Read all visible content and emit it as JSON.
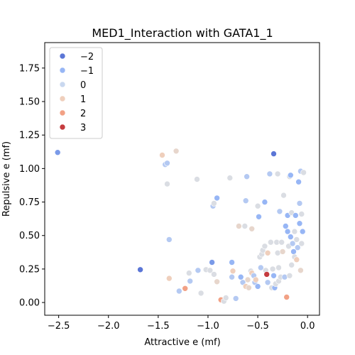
{
  "chart_data": {
    "type": "scatter",
    "title": "MED1_Interaction with GATA1_1",
    "xlabel": "Attractive e (mf)",
    "ylabel": "Repulsive e (mf)",
    "xlim": [
      -2.64,
      0.12
    ],
    "ylim": [
      -0.095,
      1.94
    ],
    "xticks": [
      -2.5,
      -2.0,
      -1.5,
      -1.0,
      -0.5,
      0.0
    ],
    "xtick_labels": [
      "−2.5",
      "−2.0",
      "−1.5",
      "−1.0",
      "−0.5",
      "0.0"
    ],
    "yticks": [
      0.0,
      0.25,
      0.5,
      0.75,
      1.0,
      1.25,
      1.5,
      1.75
    ],
    "ytick_labels": [
      "0.00",
      "0.25",
      "0.50",
      "0.75",
      "1.00",
      "1.25",
      "1.50",
      "1.75"
    ],
    "grid": false,
    "legend": {
      "placement": "top-left",
      "entries": [
        {
          "label": "−2",
          "value": -2,
          "color": "#5b76d6"
        },
        {
          "label": "−1",
          "value": -1,
          "color": "#97b6f5"
        },
        {
          "label": "0",
          "value": 0,
          "color": "#c9d8ef"
        },
        {
          "label": "1",
          "value": 1,
          "color": "#efcfbc"
        },
        {
          "label": "2",
          "value": 2,
          "color": "#f2a185"
        },
        {
          "label": "3",
          "value": 3,
          "color": "#c53b3e"
        }
      ]
    },
    "hue_colors": {
      "-2": "#5b76d6",
      "-1.5": "#7a9ae8",
      "-1": "#97b6f5",
      "-0.5": "#b4c9f2",
      "0": "#dadde3",
      "0.5": "#e7d6cc",
      "1": "#efcfbc",
      "2": "#f2a185",
      "3": "#c53b3e"
    },
    "points": [
      {
        "x": -2.51,
        "y": 1.12,
        "hue": -1.5
      },
      {
        "x": -1.68,
        "y": 0.245,
        "hue": -2
      },
      {
        "x": -1.46,
        "y": 1.1,
        "hue": 1
      },
      {
        "x": -1.43,
        "y": 1.03,
        "hue": -0.5
      },
      {
        "x": -1.41,
        "y": 1.04,
        "hue": -0.5
      },
      {
        "x": -1.32,
        "y": 1.13,
        "hue": 0.5
      },
      {
        "x": -1.41,
        "y": 0.885,
        "hue": 0
      },
      {
        "x": -1.39,
        "y": 0.47,
        "hue": -0.5
      },
      {
        "x": -1.39,
        "y": 0.18,
        "hue": 1
      },
      {
        "x": -1.29,
        "y": 0.085,
        "hue": -0.5
      },
      {
        "x": -1.23,
        "y": 0.105,
        "hue": 2
      },
      {
        "x": -1.19,
        "y": 0.22,
        "hue": 0
      },
      {
        "x": -1.18,
        "y": 0.16,
        "hue": -0.5
      },
      {
        "x": -1.11,
        "y": 0.92,
        "hue": 0
      },
      {
        "x": -1.1,
        "y": 0.24,
        "hue": -0.5
      },
      {
        "x": -1.07,
        "y": 0.07,
        "hue": 0
      },
      {
        "x": -1.02,
        "y": 0.245,
        "hue": 0
      },
      {
        "x": -0.98,
        "y": 0.24,
        "hue": 0
      },
      {
        "x": -0.96,
        "y": 0.3,
        "hue": -1.5
      },
      {
        "x": -0.95,
        "y": 0.72,
        "hue": -0.5
      },
      {
        "x": -0.94,
        "y": 0.74,
        "hue": 0
      },
      {
        "x": -0.94,
        "y": 0.21,
        "hue": 0
      },
      {
        "x": -0.91,
        "y": 0.78,
        "hue": -1
      },
      {
        "x": -0.91,
        "y": 0.155,
        "hue": 0.5
      },
      {
        "x": -0.87,
        "y": 0.02,
        "hue": 2
      },
      {
        "x": -0.84,
        "y": 0.01,
        "hue": 0
      },
      {
        "x": -0.82,
        "y": 0.035,
        "hue": 0
      },
      {
        "x": -0.78,
        "y": 0.93,
        "hue": 0
      },
      {
        "x": -0.76,
        "y": 0.3,
        "hue": -1
      },
      {
        "x": -0.75,
        "y": 0.235,
        "hue": 1
      },
      {
        "x": -0.76,
        "y": 0.19,
        "hue": -0.5
      },
      {
        "x": -0.72,
        "y": 0.03,
        "hue": -0.5
      },
      {
        "x": -0.69,
        "y": 0.57,
        "hue": 0.5
      },
      {
        "x": -0.67,
        "y": 0.19,
        "hue": -1
      },
      {
        "x": -0.65,
        "y": 0.15,
        "hue": -0.5
      },
      {
        "x": -0.63,
        "y": 0.57,
        "hue": 0
      },
      {
        "x": -0.62,
        "y": 0.76,
        "hue": -0.5
      },
      {
        "x": -0.61,
        "y": 0.94,
        "hue": -0.5
      },
      {
        "x": -0.62,
        "y": 0.12,
        "hue": 1
      },
      {
        "x": -0.6,
        "y": 0.17,
        "hue": 0.5
      },
      {
        "x": -0.59,
        "y": 0.11,
        "hue": 0.5
      },
      {
        "x": -0.57,
        "y": 0.235,
        "hue": 0
      },
      {
        "x": -0.56,
        "y": 0.55,
        "hue": 0.5
      },
      {
        "x": -0.56,
        "y": 0.22,
        "hue": 1
      },
      {
        "x": -0.54,
        "y": 0.2,
        "hue": -0.5
      },
      {
        "x": -0.53,
        "y": 0.15,
        "hue": -0.5
      },
      {
        "x": -0.52,
        "y": 0.17,
        "hue": 1
      },
      {
        "x": -0.5,
        "y": 0.12,
        "hue": -1
      },
      {
        "x": -0.5,
        "y": 0.72,
        "hue": 0
      },
      {
        "x": -0.49,
        "y": 0.64,
        "hue": -1
      },
      {
        "x": -0.48,
        "y": 0.34,
        "hue": 0
      },
      {
        "x": -0.47,
        "y": 0.26,
        "hue": -0.5
      },
      {
        "x": -0.46,
        "y": 0.36,
        "hue": 0
      },
      {
        "x": -0.45,
        "y": 0.39,
        "hue": 0
      },
      {
        "x": -0.43,
        "y": 0.75,
        "hue": -1
      },
      {
        "x": -0.43,
        "y": 0.42,
        "hue": 0
      },
      {
        "x": -0.42,
        "y": 0.24,
        "hue": 0
      },
      {
        "x": -0.41,
        "y": 0.21,
        "hue": 3
      },
      {
        "x": -0.4,
        "y": 0.15,
        "hue": -0.5
      },
      {
        "x": -0.4,
        "y": 0.37,
        "hue": 1
      },
      {
        "x": -0.38,
        "y": 0.96,
        "hue": -0.5
      },
      {
        "x": -0.37,
        "y": 0.45,
        "hue": 0
      },
      {
        "x": -0.36,
        "y": 0.11,
        "hue": 0
      },
      {
        "x": -0.35,
        "y": 0.25,
        "hue": 0
      },
      {
        "x": -0.34,
        "y": 1.11,
        "hue": -2
      },
      {
        "x": -0.34,
        "y": 0.2,
        "hue": -1
      },
      {
        "x": -0.33,
        "y": 0.11,
        "hue": -1
      },
      {
        "x": -0.32,
        "y": 0.14,
        "hue": 0
      },
      {
        "x": -0.31,
        "y": 0.45,
        "hue": 0
      },
      {
        "x": -0.3,
        "y": 0.96,
        "hue": 0
      },
      {
        "x": -0.3,
        "y": 0.37,
        "hue": 0
      },
      {
        "x": -0.29,
        "y": 0.26,
        "hue": 0
      },
      {
        "x": -0.29,
        "y": 0.16,
        "hue": 0
      },
      {
        "x": -0.28,
        "y": 0.68,
        "hue": -0.5
      },
      {
        "x": -0.27,
        "y": 0.19,
        "hue": 0
      },
      {
        "x": -0.26,
        "y": 0.45,
        "hue": 0
      },
      {
        "x": -0.25,
        "y": 0.38,
        "hue": 0.5
      },
      {
        "x": -0.24,
        "y": 0.8,
        "hue": 0
      },
      {
        "x": -0.23,
        "y": 0.19,
        "hue": -0.5
      },
      {
        "x": -0.22,
        "y": 0.57,
        "hue": -1
      },
      {
        "x": -0.21,
        "y": 0.04,
        "hue": 2
      },
      {
        "x": -0.2,
        "y": 0.65,
        "hue": -1
      },
      {
        "x": -0.2,
        "y": 0.53,
        "hue": -1
      },
      {
        "x": -0.19,
        "y": 0.42,
        "hue": 0
      },
      {
        "x": -0.18,
        "y": 0.2,
        "hue": 0
      },
      {
        "x": -0.18,
        "y": 0.94,
        "hue": 0
      },
      {
        "x": -0.17,
        "y": 0.95,
        "hue": -1
      },
      {
        "x": -0.17,
        "y": 0.49,
        "hue": -1
      },
      {
        "x": -0.16,
        "y": 0.67,
        "hue": 0
      },
      {
        "x": -0.16,
        "y": 0.28,
        "hue": 0
      },
      {
        "x": -0.15,
        "y": 0.44,
        "hue": -0.5
      },
      {
        "x": -0.14,
        "y": 0.38,
        "hue": -1
      },
      {
        "x": -0.13,
        "y": 0.53,
        "hue": 0
      },
      {
        "x": -0.13,
        "y": 0.34,
        "hue": 0
      },
      {
        "x": -0.12,
        "y": 0.65,
        "hue": -1
      },
      {
        "x": -0.11,
        "y": 0.47,
        "hue": 0
      },
      {
        "x": -0.11,
        "y": 0.32,
        "hue": 1
      },
      {
        "x": -0.1,
        "y": 0.41,
        "hue": -0.5
      },
      {
        "x": -0.09,
        "y": 0.9,
        "hue": -1
      },
      {
        "x": -0.08,
        "y": 0.74,
        "hue": -0.5
      },
      {
        "x": -0.08,
        "y": 0.59,
        "hue": -1
      },
      {
        "x": -0.07,
        "y": 0.98,
        "hue": -0.5
      },
      {
        "x": -0.07,
        "y": 0.24,
        "hue": 0.5
      },
      {
        "x": -0.06,
        "y": 0.66,
        "hue": 0
      },
      {
        "x": -0.06,
        "y": 0.44,
        "hue": 0
      },
      {
        "x": -0.05,
        "y": 0.53,
        "hue": -1
      },
      {
        "x": -0.04,
        "y": 0.97,
        "hue": 0
      }
    ]
  }
}
